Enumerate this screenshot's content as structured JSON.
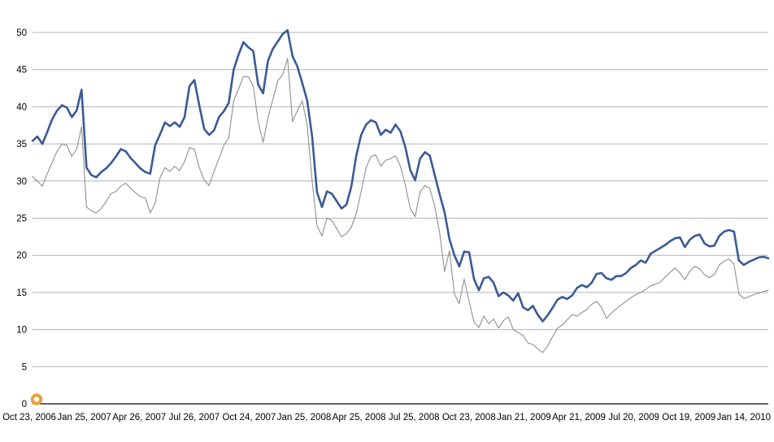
{
  "chart_data": {
    "type": "line",
    "title": "",
    "xlabel": "",
    "ylabel": "",
    "ylim": [
      0,
      50
    ],
    "ytick_step": 5,
    "ytick_labels": [
      "0",
      "5",
      "10",
      "15",
      "20",
      "25",
      "30",
      "35",
      "40",
      "45",
      "50"
    ],
    "xtick_labels": [
      "Oct 23, 2006",
      "Jan 25, 2007",
      "Apr 26, 2007",
      "Jul 26, 2007",
      "Oct 24, 2007",
      "Jan 25, 2008",
      "Apr 25, 2008",
      "Jul 25, 2008",
      "Oct 23, 2008",
      "Jan 21, 2009",
      "Apr 21, 2009",
      "Jul 20, 2009",
      "Oct 19, 2009",
      "Jan 14, 2010"
    ],
    "grid": "horizontal",
    "legend": "none",
    "sampling": "values are uniformly spaced in time from the first to the last x tick",
    "series": [
      {
        "name": "primary-blue",
        "color": "#3A5A96",
        "line_width": 2.6,
        "values": [
          35.4,
          36.0,
          35.0,
          36.6,
          38.3,
          39.5,
          40.2,
          39.9,
          38.6,
          39.5,
          42.3,
          31.8,
          30.8,
          30.5,
          31.2,
          31.7,
          32.4,
          33.3,
          34.3,
          34.0,
          33.1,
          32.4,
          31.7,
          31.2,
          31.0,
          34.8,
          36.3,
          37.9,
          37.4,
          37.9,
          37.3,
          38.6,
          42.8,
          43.6,
          40.2,
          37.0,
          36.2,
          36.8,
          38.6,
          39.4,
          40.5,
          45.0,
          47.0,
          48.7,
          48.0,
          47.5,
          43.0,
          41.8,
          46.2,
          47.8,
          48.8,
          49.8,
          50.3,
          46.8,
          45.4,
          43.2,
          40.8,
          36.0,
          28.5,
          26.5,
          28.6,
          28.3,
          27.3,
          26.3,
          26.8,
          29.3,
          33.4,
          36.2,
          37.6,
          38.2,
          37.9,
          36.2,
          36.9,
          36.5,
          37.6,
          36.7,
          34.6,
          31.5,
          30.1,
          33.0,
          33.9,
          33.4,
          30.8,
          28.2,
          25.8,
          22.2,
          20.0,
          18.5,
          20.5,
          20.4,
          16.8,
          15.3,
          16.9,
          17.1,
          16.3,
          14.5,
          15.0,
          14.6,
          13.9,
          14.9,
          13.0,
          12.6,
          13.2,
          12.0,
          11.1,
          11.9,
          12.9,
          14.0,
          14.4,
          14.1,
          14.6,
          15.6,
          16.0,
          15.7,
          16.3,
          17.5,
          17.6,
          16.9,
          16.7,
          17.2,
          17.2,
          17.6,
          18.3,
          18.7,
          19.3,
          19.0,
          20.2,
          20.6,
          21.0,
          21.4,
          21.9,
          22.3,
          22.4,
          21.1,
          22.1,
          22.6,
          22.8,
          21.6,
          21.2,
          21.3,
          22.6,
          23.2,
          23.4,
          23.2,
          19.3,
          18.7,
          19.1,
          19.4,
          19.7,
          19.8,
          19.6
        ]
      },
      {
        "name": "secondary-gray",
        "color": "#8F8F8F",
        "line_width": 1.1,
        "values": [
          30.6,
          30.0,
          29.3,
          31.0,
          32.5,
          34.0,
          35.0,
          34.8,
          33.3,
          34.3,
          37.3,
          26.5,
          26.0,
          25.7,
          26.3,
          27.2,
          28.3,
          28.6,
          29.3,
          29.7,
          29.0,
          28.4,
          27.9,
          27.7,
          25.7,
          27.0,
          30.5,
          31.8,
          31.3,
          32.0,
          31.4,
          32.6,
          34.5,
          34.3,
          31.8,
          30.1,
          29.4,
          31.3,
          33.0,
          34.8,
          35.8,
          40.8,
          42.4,
          44.1,
          44.0,
          42.8,
          38.0,
          35.2,
          38.5,
          41.0,
          43.5,
          44.3,
          46.5,
          38.0,
          39.5,
          40.8,
          37.5,
          30.0,
          24.0,
          22.6,
          25.0,
          24.7,
          23.6,
          22.5,
          22.9,
          23.8,
          25.6,
          28.6,
          31.8,
          33.3,
          33.5,
          32.0,
          32.8,
          33.0,
          33.4,
          32.0,
          29.5,
          26.3,
          25.2,
          28.5,
          29.4,
          29.0,
          26.6,
          23.0,
          17.8,
          20.6,
          14.8,
          13.5,
          16.8,
          13.8,
          11.0,
          10.3,
          11.8,
          10.8,
          11.4,
          10.2,
          11.2,
          11.7,
          10.0,
          9.6,
          9.2,
          8.2,
          8.0,
          7.4,
          6.9,
          7.8,
          9.0,
          10.2,
          10.6,
          11.3,
          12.0,
          11.8,
          12.3,
          12.7,
          13.4,
          13.8,
          13.0,
          11.5,
          12.2,
          12.8,
          13.3,
          13.8,
          14.3,
          14.7,
          15.0,
          15.4,
          15.9,
          16.1,
          16.4,
          17.1,
          17.7,
          18.3,
          17.6,
          16.7,
          17.9,
          18.5,
          18.2,
          17.4,
          17.0,
          17.4,
          18.7,
          19.2,
          19.5,
          18.8,
          14.8,
          14.2,
          14.4,
          14.7,
          14.9,
          15.1,
          15.3
        ]
      }
    ],
    "marker": {
      "shape": "donut",
      "color": "#E8A33B",
      "at_x_label": "Oct 23, 2006",
      "value": 0.6
    }
  },
  "colors": {
    "gridline": "#B3B3B3",
    "axis_line": "#000000",
    "tick_text": "#000000",
    "background": "#FFFFFF",
    "accent_marker": "#E8A33B"
  }
}
